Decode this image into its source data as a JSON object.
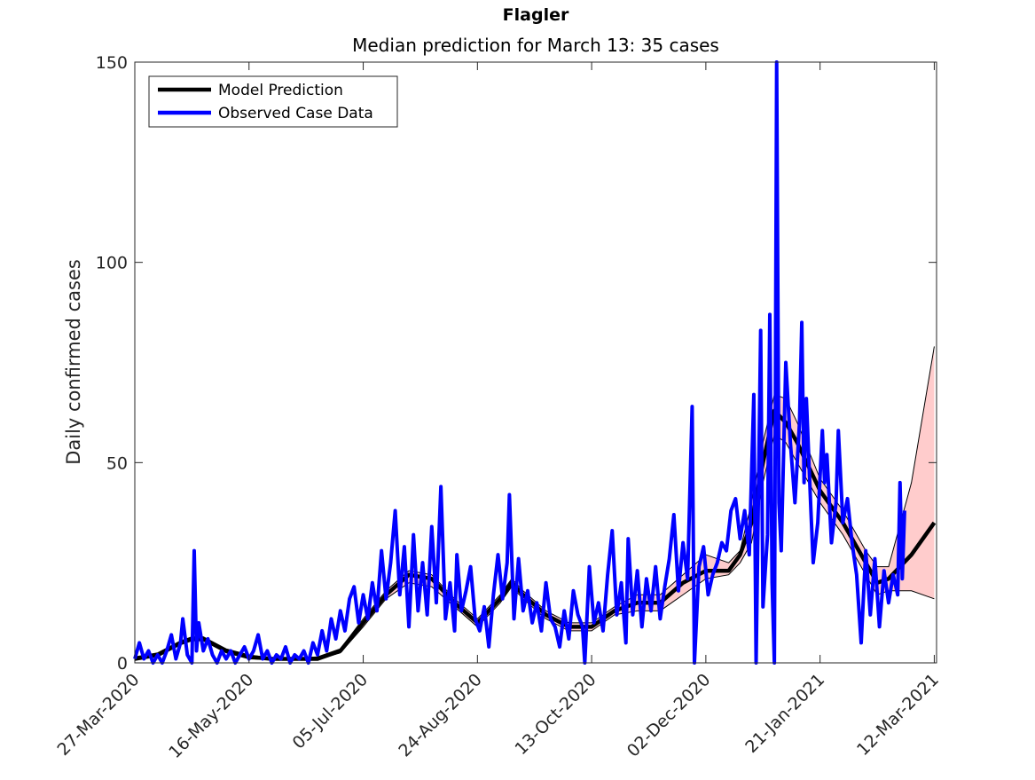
{
  "chart_data": {
    "type": "line",
    "title": "Flagler",
    "subtitle": "Median prediction for March 13: 35 cases",
    "y_label": "Daily confirmed cases",
    "xlim": [
      "2020-03-27",
      "2021-03-13"
    ],
    "xticks": [
      {
        "value": "2020-03-27",
        "label": "27-Mar-2020"
      },
      {
        "value": "2020-05-16",
        "label": "16-May-2020"
      },
      {
        "value": "2020-07-05",
        "label": "05-Jul-2020"
      },
      {
        "value": "2020-08-24",
        "label": "24-Aug-2020"
      },
      {
        "value": "2020-10-13",
        "label": "13-Oct-2020"
      },
      {
        "value": "2020-12-02",
        "label": "02-Dec-2020"
      },
      {
        "value": "2021-01-21",
        "label": "21-Jan-2021"
      },
      {
        "value": "2021-03-12",
        "label": "12-Mar-2021"
      }
    ],
    "ylim": [
      0,
      150
    ],
    "yticks": [
      0,
      50,
      100,
      150
    ],
    "legend_position": "upper left",
    "band": {
      "color": "#ffcccc",
      "x": [
        "2020-03-27",
        "2020-04-06",
        "2020-04-16",
        "2020-04-21",
        "2020-04-26",
        "2020-05-06",
        "2020-05-16",
        "2020-05-26",
        "2020-06-05",
        "2020-06-15",
        "2020-06-25",
        "2020-07-05",
        "2020-07-15",
        "2020-07-25",
        "2020-08-04",
        "2020-08-14",
        "2020-08-24",
        "2020-09-03",
        "2020-09-08",
        "2020-09-13",
        "2020-09-23",
        "2020-10-03",
        "2020-10-13",
        "2020-10-23",
        "2020-11-02",
        "2020-11-12",
        "2020-11-22",
        "2020-12-02",
        "2020-12-12",
        "2020-12-17",
        "2020-12-22",
        "2020-12-27",
        "2021-01-01",
        "2021-01-06",
        "2021-01-11",
        "2021-01-21",
        "2021-01-31",
        "2021-02-10",
        "2021-02-15",
        "2021-02-20",
        "2021-03-02",
        "2021-03-12"
      ],
      "lower": [
        1,
        1.5,
        4.5,
        5.5,
        5.5,
        2.5,
        1,
        0.8,
        0.8,
        0.8,
        2.5,
        9,
        16,
        20,
        19,
        14,
        9,
        15,
        19,
        16,
        11,
        8,
        8,
        12,
        13,
        13,
        17,
        21,
        22,
        25,
        30,
        45,
        57,
        55,
        50,
        40,
        32,
        22,
        17,
        18,
        18,
        16
      ],
      "upper": [
        1.5,
        2.5,
        5.5,
        6.5,
        6.5,
        3.5,
        2,
        1.2,
        1.2,
        1.5,
        3.5,
        11,
        18,
        23,
        22,
        16,
        11,
        17,
        21,
        18,
        13,
        10,
        10,
        14,
        17,
        17,
        22,
        27,
        25,
        28,
        40,
        55,
        67,
        66,
        60,
        46,
        38,
        28,
        24,
        24,
        45,
        79
      ]
    },
    "series": [
      {
        "name": "Model Prediction",
        "color": "#000000",
        "x": [
          "2020-03-27",
          "2020-04-06",
          "2020-04-16",
          "2020-04-21",
          "2020-04-26",
          "2020-05-06",
          "2020-05-16",
          "2020-05-26",
          "2020-06-05",
          "2020-06-15",
          "2020-06-25",
          "2020-07-05",
          "2020-07-15",
          "2020-07-25",
          "2020-08-04",
          "2020-08-14",
          "2020-08-24",
          "2020-09-03",
          "2020-09-08",
          "2020-09-13",
          "2020-09-23",
          "2020-10-03",
          "2020-10-13",
          "2020-10-23",
          "2020-11-02",
          "2020-11-12",
          "2020-11-22",
          "2020-12-02",
          "2020-12-12",
          "2020-12-17",
          "2020-12-22",
          "2020-12-27",
          "2021-01-01",
          "2021-01-06",
          "2021-01-11",
          "2021-01-21",
          "2021-01-31",
          "2021-02-10",
          "2021-02-15",
          "2021-02-20",
          "2021-03-02",
          "2021-03-12"
        ],
        "values": [
          1,
          2,
          5,
          6,
          6,
          3,
          1.5,
          1,
          1,
          1,
          3,
          10,
          17,
          22,
          21,
          15,
          10,
          16,
          20,
          17,
          12,
          9,
          9,
          13,
          15,
          15,
          20,
          23,
          23,
          27,
          35,
          50,
          63,
          60,
          55,
          43,
          35,
          25,
          20,
          21,
          27,
          35
        ]
      },
      {
        "name": "Observed Case Data",
        "color": "#0000ff",
        "x": [
          "2020-03-27",
          "2020-03-29",
          "2020-03-31",
          "2020-04-02",
          "2020-04-04",
          "2020-04-06",
          "2020-04-08",
          "2020-04-10",
          "2020-04-12",
          "2020-04-14",
          "2020-04-16",
          "2020-04-17",
          "2020-04-19",
          "2020-04-21",
          "2020-04-22",
          "2020-04-23",
          "2020-04-24",
          "2020-04-26",
          "2020-04-28",
          "2020-04-30",
          "2020-05-02",
          "2020-05-04",
          "2020-05-06",
          "2020-05-08",
          "2020-05-10",
          "2020-05-12",
          "2020-05-14",
          "2020-05-16",
          "2020-05-18",
          "2020-05-20",
          "2020-05-22",
          "2020-05-24",
          "2020-05-26",
          "2020-05-28",
          "2020-05-30",
          "2020-06-01",
          "2020-06-03",
          "2020-06-05",
          "2020-06-07",
          "2020-06-09",
          "2020-06-11",
          "2020-06-13",
          "2020-06-15",
          "2020-06-17",
          "2020-06-19",
          "2020-06-21",
          "2020-06-23",
          "2020-06-25",
          "2020-06-27",
          "2020-06-29",
          "2020-07-01",
          "2020-07-03",
          "2020-07-05",
          "2020-07-07",
          "2020-07-09",
          "2020-07-11",
          "2020-07-13",
          "2020-07-15",
          "2020-07-17",
          "2020-07-19",
          "2020-07-21",
          "2020-07-23",
          "2020-07-25",
          "2020-07-27",
          "2020-07-29",
          "2020-07-31",
          "2020-08-02",
          "2020-08-04",
          "2020-08-06",
          "2020-08-08",
          "2020-08-10",
          "2020-08-12",
          "2020-08-14",
          "2020-08-15",
          "2020-08-17",
          "2020-08-19",
          "2020-08-21",
          "2020-08-23",
          "2020-08-25",
          "2020-08-27",
          "2020-08-29",
          "2020-08-31",
          "2020-09-02",
          "2020-09-04",
          "2020-09-06",
          "2020-09-07",
          "2020-09-09",
          "2020-09-11",
          "2020-09-13",
          "2020-09-15",
          "2020-09-17",
          "2020-09-19",
          "2020-09-21",
          "2020-09-23",
          "2020-09-25",
          "2020-09-27",
          "2020-09-29",
          "2020-10-01",
          "2020-10-03",
          "2020-10-05",
          "2020-10-07",
          "2020-10-09",
          "2020-10-10",
          "2020-10-12",
          "2020-10-14",
          "2020-10-16",
          "2020-10-18",
          "2020-10-20",
          "2020-10-22",
          "2020-10-24",
          "2020-10-26",
          "2020-10-28",
          "2020-10-29",
          "2020-10-31",
          "2020-11-02",
          "2020-11-04",
          "2020-11-06",
          "2020-11-08",
          "2020-11-10",
          "2020-11-12",
          "2020-11-14",
          "2020-11-16",
          "2020-11-18",
          "2020-11-20",
          "2020-11-22",
          "2020-11-24",
          "2020-11-26",
          "2020-11-27",
          "2020-11-29",
          "2020-12-01",
          "2020-12-03",
          "2020-12-05",
          "2020-12-07",
          "2020-12-09",
          "2020-12-11",
          "2020-12-13",
          "2020-12-15",
          "2020-12-17",
          "2020-12-19",
          "2020-12-21",
          "2020-12-23",
          "2020-12-24",
          "2020-12-26",
          "2020-12-27",
          "2020-12-29",
          "2020-12-30",
          "2020-12-31",
          "2021-01-01",
          "2021-01-02",
          "2021-01-03",
          "2021-01-04",
          "2021-01-06",
          "2021-01-08",
          "2021-01-10",
          "2021-01-12",
          "2021-01-13",
          "2021-01-14",
          "2021-01-15",
          "2021-01-17",
          "2021-01-18",
          "2021-01-20",
          "2021-01-22",
          "2021-01-23",
          "2021-01-24",
          "2021-01-26",
          "2021-01-28",
          "2021-01-29",
          "2021-01-31",
          "2021-02-02",
          "2021-02-04",
          "2021-02-06",
          "2021-02-08",
          "2021-02-10",
          "2021-02-12",
          "2021-02-14",
          "2021-02-16",
          "2021-02-18",
          "2021-02-20",
          "2021-02-22",
          "2021-02-24",
          "2021-02-25",
          "2021-02-26",
          "2021-02-27"
        ],
        "values": [
          1,
          5,
          1,
          3,
          0,
          2,
          0,
          3,
          7,
          1,
          5,
          11,
          2,
          0,
          28,
          3,
          10,
          3,
          6,
          2,
          0,
          3,
          1,
          3,
          0,
          2,
          4,
          1,
          3,
          7,
          1,
          3,
          0,
          2,
          1,
          4,
          0,
          2,
          1,
          3,
          0,
          5,
          2,
          8,
          3,
          11,
          6,
          13,
          8,
          16,
          19,
          10,
          17,
          11,
          20,
          13,
          28,
          16,
          25,
          38,
          17,
          29,
          9,
          32,
          13,
          25,
          12,
          34,
          15,
          44,
          11,
          20,
          8,
          27,
          13,
          18,
          24,
          11,
          8,
          14,
          4,
          17,
          27,
          16,
          25,
          42,
          11,
          26,
          13,
          18,
          10,
          15,
          8,
          20,
          11,
          9,
          4,
          13,
          6,
          18,
          12,
          9,
          0,
          24,
          10,
          15,
          8,
          22,
          33,
          12,
          20,
          5,
          31,
          12,
          23,
          9,
          21,
          13,
          24,
          11,
          19,
          26,
          37,
          18,
          30,
          21,
          64,
          0,
          24,
          29,
          17,
          22,
          25,
          30,
          28,
          38,
          41,
          31,
          38,
          27,
          67,
          0,
          83,
          14,
          32,
          87,
          20,
          0,
          150,
          40,
          28,
          75,
          55,
          40,
          60,
          85,
          45,
          66,
          38,
          25,
          35,
          58,
          45,
          52,
          30,
          40,
          58,
          35,
          41,
          30,
          22,
          5,
          28,
          12,
          26,
          9,
          23,
          15,
          22,
          17,
          45,
          21,
          38
        ]
      }
    ]
  }
}
